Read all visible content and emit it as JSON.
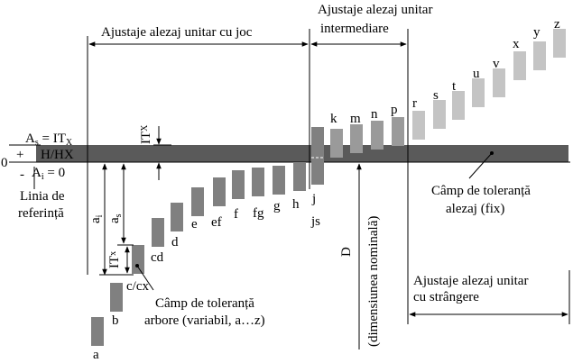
{
  "header": {
    "joc": "Ajustaje alezaj unitar cu joc",
    "intermediare_1": "Ajustaje alezaj unitar",
    "intermediare_2": "intermediare",
    "strangere_1": "Ajustaje alezaj unitar",
    "strangere_2": "cu strângere"
  },
  "left_labels": {
    "as_eq": "A",
    "as_sub": "s",
    "as_rhs": " = IT",
    "as_rhs_sub": "X",
    "plus": "+",
    "hhx": "H/HX",
    "zero": "0",
    "minus": "-",
    "ai": "A",
    "ai_sub": "i",
    "ai_rhs": " = 0",
    "ref_1": "Linia de",
    "ref_2": "referință"
  },
  "dims": {
    "itx": "IT",
    "itx_sub": "X",
    "ai": "a",
    "ai_sub": "i",
    "as": "a",
    "as_sub": "s",
    "itx2": "IT",
    "itx2_sub": "x",
    "D": "D",
    "dim_nominala": "(dimensiunea nominală)"
  },
  "field_labels": {
    "arbore_1": "Câmp de toleranță",
    "arbore_2": "arbore (variabil, a…z)",
    "alezaj_1": "Câmp de toleranță",
    "alezaj_2": "alezaj (fix)"
  },
  "shafts": [
    {
      "label": "a"
    },
    {
      "label": "b"
    },
    {
      "label": "c/cx"
    },
    {
      "label": "cd"
    },
    {
      "label": "d"
    },
    {
      "label": "e"
    },
    {
      "label": "ef"
    },
    {
      "label": "f"
    },
    {
      "label": "fg"
    },
    {
      "label": "g"
    },
    {
      "label": "h"
    },
    {
      "label": "j"
    },
    {
      "label": "js"
    },
    {
      "label": "k"
    },
    {
      "label": "m"
    },
    {
      "label": "n"
    },
    {
      "label": "p"
    },
    {
      "label": "r"
    },
    {
      "label": "s"
    },
    {
      "label": "t"
    },
    {
      "label": "u"
    },
    {
      "label": "v"
    },
    {
      "label": "x"
    },
    {
      "label": "y"
    },
    {
      "label": "z"
    }
  ],
  "colors": {
    "dark_shaft": "#808080",
    "mid_shaft": "#9a9a9a",
    "light_shaft": "#c4c4c4",
    "hole_band": "#5a5a5a"
  }
}
